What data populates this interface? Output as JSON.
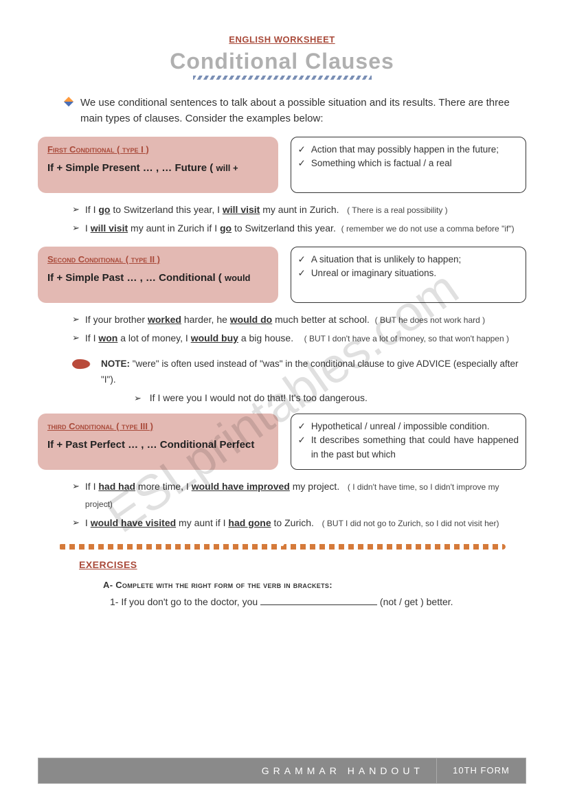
{
  "watermark": "ESLprintables.com",
  "header": {
    "small_title": "ENGLISH WORKSHEET",
    "main_title": "Conditional Clauses"
  },
  "intro": "We use conditional sentences to talk about a possible situation and its results. There are three main types of clauses. Consider the examples below:",
  "conditionals": [
    {
      "title": "First Conditional ( type I )",
      "formula_main": "If + Simple Present … , … Future ( ",
      "formula_tail": "will +",
      "desc": [
        "Action that may possibly happen in the future;",
        "Something which is factual / a real"
      ],
      "desc_justify": true,
      "examples": [
        {
          "html": "If I <span class='u'>go</span> to Switzerland this year, I <span class='u'>will visit</span> my aunt in Zurich.&nbsp;&nbsp;&nbsp;<span class='paren'>( There is a real possibility )</span>"
        },
        {
          "html": "I <span class='u'>will visit</span> my aunt in Zurich if I <span class='u'>go</span> to Switzerland this year.&nbsp;&nbsp;<span class='paren'>( remember we do not use a comma before \"if\")</span>"
        }
      ]
    },
    {
      "title": "Second Conditional ( type II )",
      "formula_main": "If + Simple Past … , … Conditional ( ",
      "formula_tail": "would",
      "desc": [
        "A situation that is unlikely to happen;",
        "Unreal or imaginary situations."
      ],
      "desc_justify": false,
      "examples": [
        {
          "html": "If your brother <span class='u'>worked</span> harder, he <span class='u'>would do</span> much better at school.&nbsp;&nbsp;<span class='paren'>( BUT he does not work hard )</span>"
        },
        {
          "html": "If I <span class='u'>won</span> a lot of money, I <span class='u'>would buy</span> a big house.&nbsp;&nbsp;&nbsp;&nbsp;<span class='paren'>( BUT I don't have a lot of money, so that won't happen )</span>"
        }
      ]
    },
    {
      "title": "third Conditional ( type III )",
      "formula_main": "If + Past Perfect … , … Conditional Perfect",
      "formula_tail": "",
      "desc": [
        "Hypothetical / unreal / impossible condition.",
        "It describes something that could have happened in the past but which"
      ],
      "desc_justify": true,
      "examples": [
        {
          "html": "If I <span class='u'>had had</span> more time, I <span class='u'>would have improved</span> my project.&nbsp;&nbsp;&nbsp;<span class='paren'>( I didn't have time, so I didn't improve my project)</span>"
        },
        {
          "html": "I <span class='u'>would have visited</span> my aunt if I <span class='u'>had gone</span> to Zurich.&nbsp;&nbsp;&nbsp;<span class='paren'>( BUT I did not go to Zurich, so I did not visit her)</span>"
        }
      ]
    }
  ],
  "note": {
    "lead": "NOTE: ",
    "body": "\"were\" is often used instead of \"was\" in the conditional clause to give ADVICE (especially after \"I\").",
    "example": "If I were you I would not do that! It's too dangerous."
  },
  "exercises": {
    "title": "EXERCISES",
    "instruction": "A- Complete with the right form of the verb in brackets:",
    "item": "1-  If you don't go to the doctor, you ",
    "item_tail": " (not / get ) better."
  },
  "footer": {
    "main": "GRAMMAR HANDOUT",
    "side": "10TH FORM"
  },
  "colors": {
    "accent": "#a94a3a",
    "box_bg": "#e3b9b3",
    "title_grey": "#b0b0b0",
    "footer_bg": "#8a8a8a",
    "wave": "#d57a3a"
  }
}
